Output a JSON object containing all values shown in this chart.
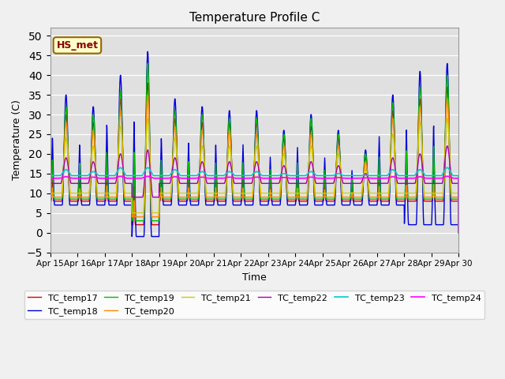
{
  "title": "Temperature Profile C",
  "xlabel": "Time",
  "ylabel": "Temperature (C)",
  "ylim": [
    -5,
    52
  ],
  "annotation_text": "HS_met",
  "annotation_bg": "#FFFFCC",
  "annotation_border": "#996600",
  "series_colors": {
    "TC_temp17": "#DD0000",
    "TC_temp18": "#0000DD",
    "TC_temp19": "#00BB00",
    "TC_temp20": "#FF8800",
    "TC_temp21": "#CCCC00",
    "TC_temp22": "#AA00AA",
    "TC_temp23": "#00CCCC",
    "TC_temp24": "#FF00FF"
  },
  "x_tick_labels": [
    "Apr 15",
    "Apr 16",
    "Apr 17",
    "Apr 18",
    "Apr 19",
    "Apr 20",
    "Apr 21",
    "Apr 22",
    "Apr 23",
    "Apr 24",
    "Apr 25",
    "Apr 26",
    "Apr 27",
    "Apr 28",
    "Apr 29",
    "Apr 30"
  ],
  "days": 15
}
